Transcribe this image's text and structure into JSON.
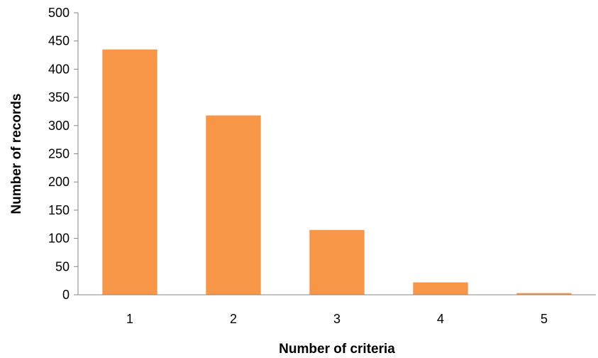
{
  "chart_data": {
    "type": "bar",
    "categories": [
      "1",
      "2",
      "3",
      "4",
      "5"
    ],
    "values": [
      435,
      318,
      115,
      22,
      3
    ],
    "title": "",
    "xlabel": "Number of criteria",
    "ylabel": "Number of records",
    "ylim": [
      0,
      500
    ],
    "yticks": [
      0,
      50,
      100,
      150,
      200,
      250,
      300,
      350,
      400,
      450,
      500
    ],
    "grid": false,
    "legend": "none",
    "colors": {
      "bar": "#F79646",
      "axis": "#868686",
      "text": "#000000"
    }
  }
}
